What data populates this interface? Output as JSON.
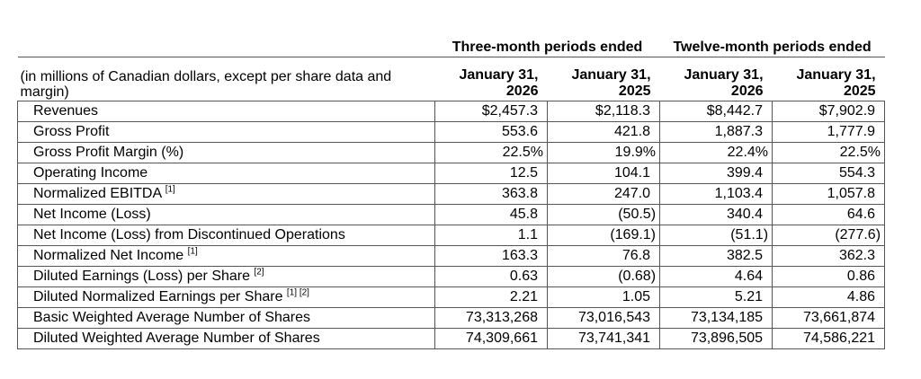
{
  "groups": [
    "Three-month periods ended",
    "Twelve-month periods ended"
  ],
  "note": "(in millions of Canadian dollars, except per share data and margin)",
  "columns": [
    "January 31, 2026",
    "January 31, 2025",
    "January 31, 2026",
    "January 31, 2025"
  ],
  "rows": [
    {
      "label": "Revenues",
      "sup": "",
      "values": [
        "$2,457.3",
        "$2,118.3",
        "$8,442.7",
        "$7,902.9"
      ]
    },
    {
      "label": "Gross Profit",
      "sup": "",
      "values": [
        "553.6",
        "421.8",
        "1,887.3",
        "1,777.9"
      ]
    },
    {
      "label": "Gross Profit Margin (%)",
      "sup": "",
      "values": [
        "22.5%",
        "19.9%",
        "22.4%",
        "22.5%"
      ]
    },
    {
      "label": "Operating Income",
      "sup": "",
      "values": [
        "12.5",
        "104.1",
        "399.4",
        "554.3"
      ]
    },
    {
      "label": "Normalized EBITDA",
      "sup": "[1]",
      "values": [
        "363.8",
        "247.0",
        "1,103.4",
        "1,057.8"
      ]
    },
    {
      "label": "Net Income (Loss)",
      "sup": "",
      "values": [
        "45.8",
        "(50.5)",
        "340.4",
        "64.6"
      ]
    },
    {
      "label": "Net Income (Loss) from Discontinued Operations",
      "sup": "",
      "values": [
        "1.1",
        "(169.1)",
        "(51.1)",
        "(277.6)"
      ]
    },
    {
      "label": "Normalized Net Income",
      "sup": "[1]",
      "values": [
        "163.3",
        "76.8",
        "382.5",
        "362.3"
      ]
    },
    {
      "label": "Diluted Earnings (Loss) per Share",
      "sup": "[2]",
      "values": [
        "0.63",
        "(0.68)",
        "4.64",
        "0.86"
      ]
    },
    {
      "label": "Diluted Normalized Earnings per Share",
      "sup": "[1] [2]",
      "values": [
        "2.21",
        "1.05",
        "5.21",
        "4.86"
      ]
    },
    {
      "label": "Basic Weighted Average Number of Shares",
      "sup": "",
      "values": [
        "73,313,268",
        "73,016,543",
        "73,134,185",
        "73,661,874"
      ]
    },
    {
      "label": "Diluted Weighted Average Number of Shares",
      "sup": "",
      "values": [
        "74,309,661",
        "73,741,341",
        "73,896,505",
        "74,586,221"
      ]
    }
  ]
}
